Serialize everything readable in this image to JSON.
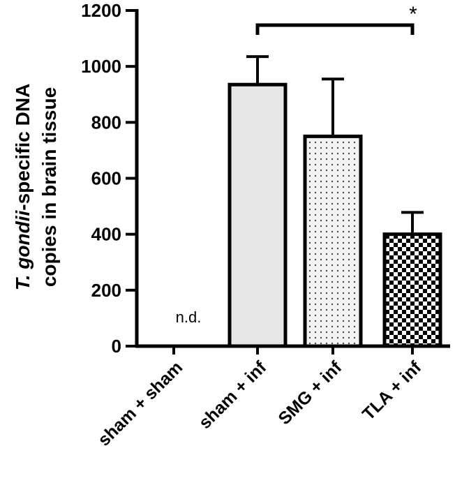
{
  "chart_data": {
    "type": "bar",
    "categories": [
      "sham + sham",
      "sham + inf",
      "SMG + inf",
      "TLA + inf"
    ],
    "values": [
      0,
      935,
      750,
      400
    ],
    "errors": [
      0,
      100,
      205,
      78
    ],
    "annotations": [
      "n.d.",
      "",
      "",
      ""
    ],
    "ylabel_italic": "T. gondii",
    "ylabel_rest": "-specific DNA",
    "ylabel_line2": "copies in brain tissue",
    "ylim": [
      0,
      1200
    ],
    "yticks": [
      0,
      200,
      400,
      600,
      800,
      1000,
      1200
    ],
    "significance": {
      "from": 1,
      "to": 3,
      "label": "*"
    },
    "grid": false,
    "legend": "none",
    "fills": [
      "none",
      "solid-light-gray",
      "dotted",
      "checkerboard"
    ],
    "colors": {
      "bar_fill": "#e6e6e6",
      "stroke": "#000000"
    }
  }
}
